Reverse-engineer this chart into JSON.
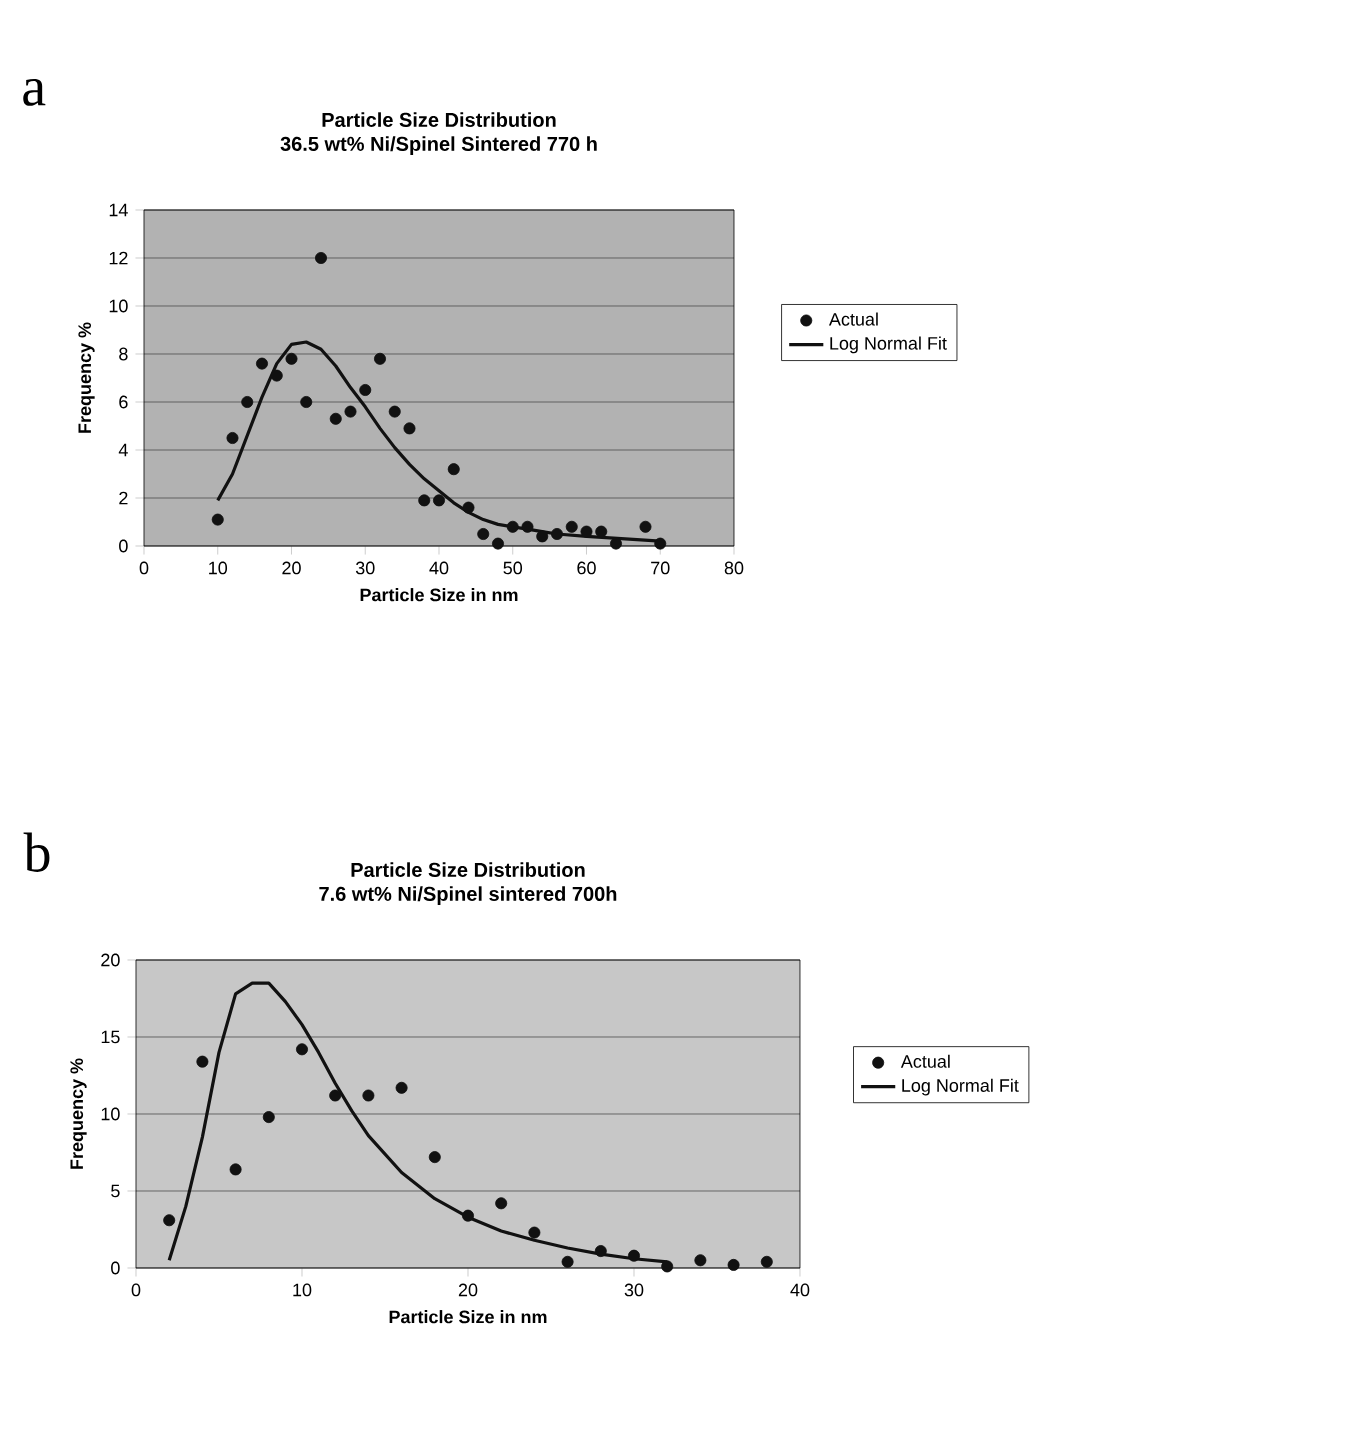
{
  "chart_data": [
    {
      "type": "scatter",
      "title": "Particle Size Distribution",
      "subtitle": "36.5 wt% Ni/Spinel Sintered 770 h",
      "xlabel": "Particle Size in nm",
      "ylabel": "Frequency %",
      "annotations": [
        "a"
      ],
      "xlim": [
        0,
        80
      ],
      "xticks": [
        0,
        10,
        20,
        30,
        40,
        50,
        60,
        70,
        80
      ],
      "ylim": [
        0,
        14
      ],
      "yticks": [
        0,
        2,
        4,
        6,
        8,
        10,
        12,
        14
      ],
      "grid": "y",
      "legend": "right",
      "series": [
        {
          "name": "Actual",
          "marker": "circle",
          "color": "#111111",
          "x": [
            10,
            12,
            14,
            16,
            18,
            20,
            22,
            24,
            26,
            28,
            30,
            32,
            34,
            36,
            38,
            40,
            42,
            44,
            46,
            48,
            50,
            52,
            54,
            56,
            58,
            60,
            62,
            64,
            68,
            70
          ],
          "values": [
            1.1,
            4.5,
            6.0,
            7.6,
            7.1,
            7.8,
            6.0,
            12.0,
            5.3,
            5.6,
            6.5,
            7.8,
            5.6,
            4.9,
            1.9,
            1.9,
            3.2,
            1.6,
            0.5,
            0.1,
            0.8,
            0.8,
            0.4,
            0.5,
            0.8,
            0.6,
            0.6,
            0.1,
            0.8,
            0.1
          ]
        },
        {
          "name": "Log Normal Fit",
          "type": "line",
          "color": "#111111",
          "x": [
            10,
            12,
            14,
            16,
            18,
            20,
            22,
            24,
            26,
            28,
            30,
            32,
            34,
            36,
            38,
            40,
            42,
            44,
            46,
            48,
            50,
            52,
            54,
            56,
            60,
            65,
            70
          ],
          "values": [
            1.9,
            3.0,
            4.6,
            6.2,
            7.6,
            8.4,
            8.5,
            8.2,
            7.5,
            6.6,
            5.8,
            4.9,
            4.1,
            3.4,
            2.8,
            2.3,
            1.8,
            1.4,
            1.1,
            0.9,
            0.8,
            0.7,
            0.6,
            0.5,
            0.4,
            0.3,
            0.2
          ]
        }
      ]
    },
    {
      "type": "scatter",
      "title": "Particle Size Distribution",
      "subtitle": "7.6 wt% Ni/Spinel sintered 700h",
      "xlabel": "Particle Size in nm",
      "ylabel": "Frequency %",
      "annotations": [
        "b"
      ],
      "xlim": [
        0,
        40
      ],
      "xticks": [
        0,
        10,
        20,
        30,
        40
      ],
      "ylim": [
        0,
        20
      ],
      "yticks": [
        0,
        5,
        10,
        15,
        20
      ],
      "grid": "y",
      "legend": "right",
      "series": [
        {
          "name": "Actual",
          "marker": "circle",
          "color": "#111111",
          "x": [
            2,
            4,
            6,
            8,
            10,
            12,
            14,
            16,
            18,
            20,
            22,
            24,
            26,
            28,
            30,
            32,
            34,
            36,
            38
          ],
          "values": [
            3.1,
            13.4,
            6.4,
            9.8,
            14.2,
            11.2,
            11.2,
            11.7,
            7.2,
            3.4,
            4.2,
            2.3,
            0.4,
            1.1,
            0.8,
            0.1,
            0.5,
            0.2,
            0.4
          ]
        },
        {
          "name": "Log Normal Fit",
          "type": "line",
          "color": "#111111",
          "x": [
            2,
            3,
            4,
            5,
            6,
            7,
            8,
            9,
            10,
            11,
            12,
            13,
            14,
            16,
            18,
            20,
            22,
            24,
            26,
            28,
            30,
            32
          ],
          "values": [
            0.5,
            4.0,
            8.5,
            14.0,
            17.8,
            18.5,
            18.5,
            17.3,
            15.8,
            14.0,
            12.0,
            10.2,
            8.6,
            6.2,
            4.5,
            3.3,
            2.4,
            1.8,
            1.3,
            0.9,
            0.6,
            0.4
          ]
        }
      ]
    }
  ]
}
